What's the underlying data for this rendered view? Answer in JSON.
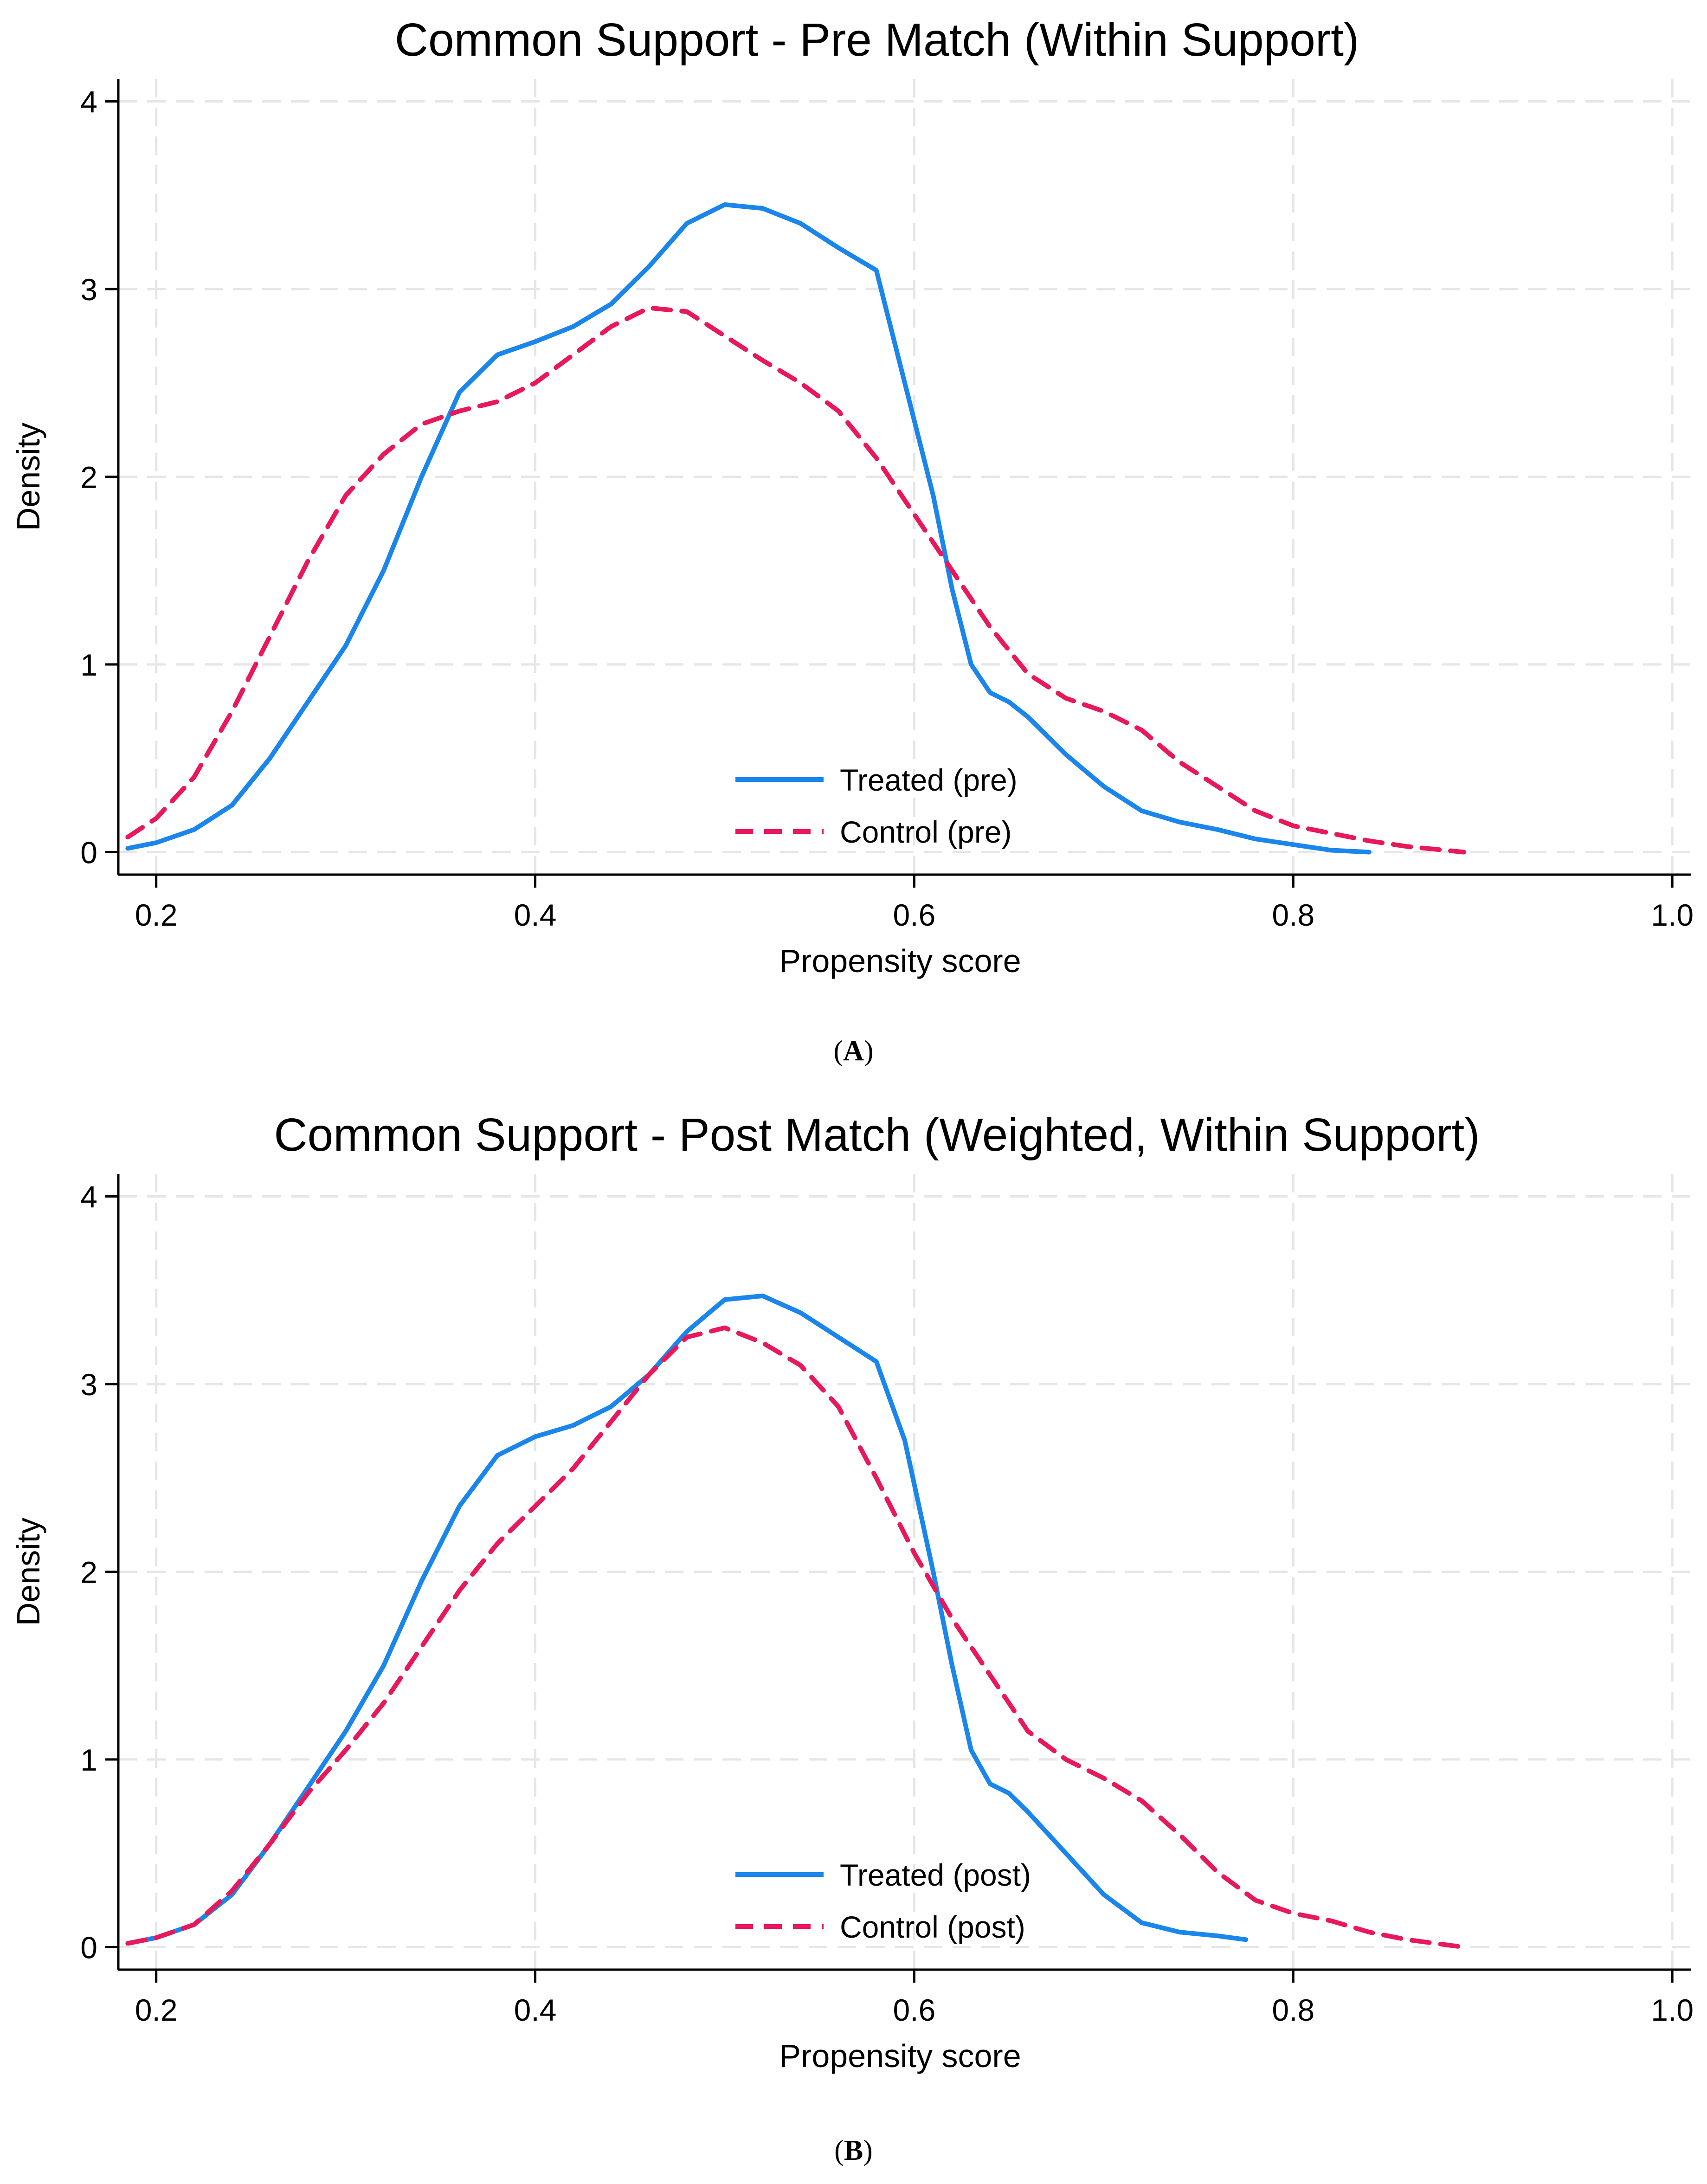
{
  "colors": {
    "treated": "#1a86ec",
    "control": "#e8185a",
    "grid": "#e6e6e6",
    "axis": "#000000"
  },
  "panels": [
    {
      "caption_letter": "A",
      "chart_data": {
        "type": "line",
        "title": "Common Support - Pre Match (Within Support)",
        "xlabel": "Propensity score",
        "ylabel": "Density",
        "xlim": [
          0.18,
          1.01
        ],
        "ylim": [
          -0.12,
          4.12
        ],
        "xticks": [
          0.2,
          0.4,
          0.6,
          0.8,
          1.0
        ],
        "xtick_labels": [
          "0.2",
          "0.4",
          "0.6",
          "0.8",
          "1.0"
        ],
        "yticks": [
          0,
          1,
          2,
          3,
          4
        ],
        "ytick_labels": [
          "0",
          "1",
          "2",
          "3",
          "4"
        ],
        "grid": true,
        "legend_position": "bottom-center",
        "series": [
          {
            "name": "Treated (pre)",
            "style": "solid",
            "color": "#1a86ec",
            "x": [
              0.185,
              0.2,
              0.22,
              0.24,
              0.26,
              0.28,
              0.3,
              0.32,
              0.34,
              0.36,
              0.38,
              0.4,
              0.42,
              0.44,
              0.46,
              0.48,
              0.5,
              0.52,
              0.54,
              0.56,
              0.58,
              0.595,
              0.61,
              0.62,
              0.63,
              0.64,
              0.65,
              0.66,
              0.68,
              0.7,
              0.72,
              0.74,
              0.76,
              0.78,
              0.8,
              0.82,
              0.84
            ],
            "y": [
              0.02,
              0.05,
              0.12,
              0.25,
              0.5,
              0.8,
              1.1,
              1.5,
              2.0,
              2.45,
              2.65,
              2.72,
              2.8,
              2.92,
              3.12,
              3.35,
              3.45,
              3.43,
              3.35,
              3.22,
              3.1,
              2.5,
              1.9,
              1.4,
              1.0,
              0.85,
              0.8,
              0.72,
              0.52,
              0.35,
              0.22,
              0.16,
              0.12,
              0.07,
              0.04,
              0.01,
              0.0
            ]
          },
          {
            "name": "Control (pre)",
            "style": "dashed",
            "color": "#e8185a",
            "x": [
              0.185,
              0.2,
              0.22,
              0.24,
              0.26,
              0.28,
              0.3,
              0.32,
              0.34,
              0.36,
              0.38,
              0.4,
              0.42,
              0.44,
              0.46,
              0.48,
              0.5,
              0.52,
              0.54,
              0.56,
              0.58,
              0.6,
              0.62,
              0.64,
              0.66,
              0.68,
              0.7,
              0.72,
              0.74,
              0.76,
              0.78,
              0.8,
              0.82,
              0.84,
              0.86,
              0.89
            ],
            "y": [
              0.08,
              0.18,
              0.4,
              0.75,
              1.15,
              1.55,
              1.9,
              2.12,
              2.28,
              2.35,
              2.4,
              2.5,
              2.65,
              2.8,
              2.9,
              2.88,
              2.75,
              2.62,
              2.5,
              2.35,
              2.1,
              1.8,
              1.5,
              1.2,
              0.95,
              0.82,
              0.75,
              0.65,
              0.48,
              0.35,
              0.22,
              0.14,
              0.1,
              0.06,
              0.03,
              0.0
            ]
          }
        ]
      }
    },
    {
      "caption_letter": "B",
      "chart_data": {
        "type": "line",
        "title": "Common Support - Post Match (Weighted, Within Support)",
        "xlabel": "Propensity score",
        "ylabel": "Density",
        "xlim": [
          0.18,
          1.01
        ],
        "ylim": [
          -0.12,
          4.12
        ],
        "xticks": [
          0.2,
          0.4,
          0.6,
          0.8,
          1.0
        ],
        "xtick_labels": [
          "0.2",
          "0.4",
          "0.6",
          "0.8",
          "1.0"
        ],
        "yticks": [
          0,
          1,
          2,
          3,
          4
        ],
        "ytick_labels": [
          "0",
          "1",
          "2",
          "3",
          "4"
        ],
        "grid": true,
        "legend_position": "bottom-center",
        "series": [
          {
            "name": "Treated (post)",
            "style": "solid",
            "color": "#1a86ec",
            "x": [
              0.185,
              0.2,
              0.22,
              0.24,
              0.26,
              0.28,
              0.3,
              0.32,
              0.34,
              0.36,
              0.38,
              0.4,
              0.42,
              0.44,
              0.46,
              0.48,
              0.5,
              0.52,
              0.54,
              0.56,
              0.58,
              0.595,
              0.61,
              0.62,
              0.63,
              0.64,
              0.65,
              0.66,
              0.68,
              0.7,
              0.72,
              0.74,
              0.76,
              0.775
            ],
            "y": [
              0.02,
              0.05,
              0.12,
              0.28,
              0.55,
              0.85,
              1.15,
              1.5,
              1.95,
              2.35,
              2.62,
              2.72,
              2.78,
              2.88,
              3.05,
              3.28,
              3.45,
              3.47,
              3.38,
              3.25,
              3.12,
              2.7,
              2.0,
              1.5,
              1.05,
              0.87,
              0.82,
              0.72,
              0.5,
              0.28,
              0.13,
              0.08,
              0.06,
              0.04
            ]
          },
          {
            "name": "Control (post)",
            "style": "dashed",
            "color": "#e8185a",
            "x": [
              0.185,
              0.2,
              0.22,
              0.24,
              0.26,
              0.28,
              0.3,
              0.32,
              0.34,
              0.36,
              0.38,
              0.4,
              0.42,
              0.44,
              0.46,
              0.48,
              0.5,
              0.52,
              0.54,
              0.56,
              0.58,
              0.6,
              0.62,
              0.64,
              0.66,
              0.68,
              0.7,
              0.72,
              0.74,
              0.76,
              0.78,
              0.8,
              0.82,
              0.84,
              0.86,
              0.89
            ],
            "y": [
              0.02,
              0.05,
              0.12,
              0.3,
              0.55,
              0.82,
              1.05,
              1.3,
              1.6,
              1.9,
              2.15,
              2.35,
              2.55,
              2.8,
              3.05,
              3.25,
              3.3,
              3.22,
              3.1,
              2.88,
              2.5,
              2.1,
              1.75,
              1.45,
              1.15,
              1.0,
              0.9,
              0.78,
              0.6,
              0.4,
              0.25,
              0.18,
              0.14,
              0.08,
              0.04,
              0.0
            ]
          }
        ]
      }
    }
  ]
}
